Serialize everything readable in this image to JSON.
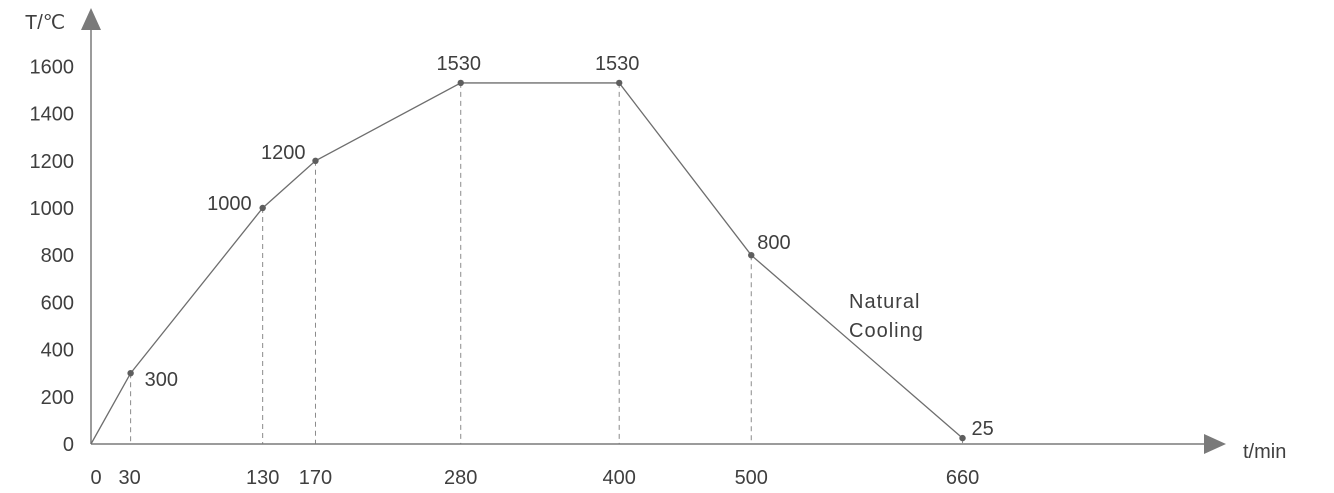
{
  "chart_data": {
    "type": "line",
    "ylabel": "T/℃",
    "xlabel": "t/min",
    "x_ticks": [
      0,
      30,
      130,
      170,
      280,
      400,
      500,
      660
    ],
    "y_ticks": [
      0,
      200,
      400,
      600,
      800,
      1000,
      1200,
      1400,
      1600
    ],
    "xlim": [
      0,
      660
    ],
    "ylim": [
      0,
      1600
    ],
    "grid": false,
    "series": [
      {
        "x": [
          0,
          30,
          130,
          170,
          280,
          400,
          500,
          660
        ],
        "y": [
          0,
          300,
          1000,
          1200,
          1530,
          1530,
          800,
          25
        ]
      }
    ],
    "point_labels": [
      {
        "x": 30,
        "y": 300,
        "text": "300"
      },
      {
        "x": 130,
        "y": 1000,
        "text": "1000"
      },
      {
        "x": 170,
        "y": 1200,
        "text": "1200"
      },
      {
        "x": 280,
        "y": 1530,
        "text": "1530"
      },
      {
        "x": 400,
        "y": 1530,
        "text": "1530"
      },
      {
        "x": 500,
        "y": 800,
        "text": "800"
      },
      {
        "x": 660,
        "y": 25,
        "text": "25"
      }
    ],
    "annotations": [
      "Natural",
      "Cooling"
    ]
  }
}
